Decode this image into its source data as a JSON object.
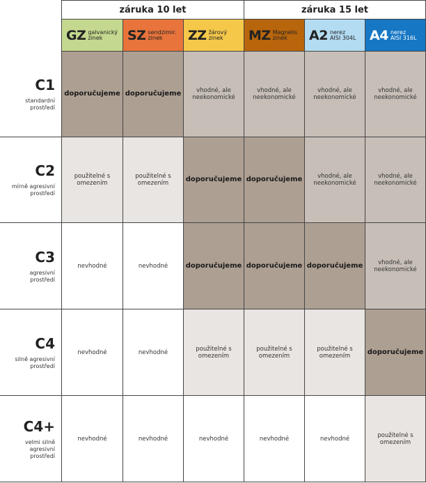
{
  "groups": [
    {
      "label": "záruka 10 let"
    },
    {
      "label": "záruka 15 let"
    }
  ],
  "materials": [
    {
      "code": "GZ",
      "desc1": "galvanický",
      "desc2": "zinek",
      "color": "#c4d98f",
      "text_color": "#222222"
    },
    {
      "code": "SZ",
      "desc1": "sendzimir.",
      "desc2": "zinek",
      "color": "#e8743c",
      "text_color": "#222222"
    },
    {
      "code": "ZZ",
      "desc1": "žárový",
      "desc2": "zinek",
      "color": "#f5c84a",
      "text_color": "#222222"
    },
    {
      "code": "MZ",
      "desc1": "Magnelis",
      "desc2": "zinek",
      "color": "#b8650c",
      "text_color": "#222222"
    },
    {
      "code": "A2",
      "desc1": "nerez",
      "desc2": "AISI 304L",
      "color": "#b3dbf2",
      "text_color": "#222222"
    },
    {
      "code": "A4",
      "desc1": "nerez",
      "desc2": "AISI 316L",
      "color": "#1677c4",
      "text_color": "#ffffff"
    }
  ],
  "rows": [
    {
      "code": "C1",
      "desc": [
        "standardní",
        "prostředí"
      ],
      "cells": [
        {
          "t": "doporučujeme",
          "k": "rec"
        },
        {
          "t": "doporučujeme",
          "k": "rec"
        },
        {
          "t": "vhodné, ale neekonomické",
          "k": "ok"
        },
        {
          "t": "vhodné, ale neekonomické",
          "k": "ok"
        },
        {
          "t": "vhodné, ale neekonomické",
          "k": "ok"
        },
        {
          "t": "vhodné, ale neekonomické",
          "k": "ok"
        }
      ]
    },
    {
      "code": "C2",
      "desc": [
        "mírně agresivní",
        "prostředí"
      ],
      "cells": [
        {
          "t": "použitelné s omezením",
          "k": "lim"
        },
        {
          "t": "použitelné s omezením",
          "k": "lim"
        },
        {
          "t": "doporučujeme",
          "k": "rec"
        },
        {
          "t": "doporučujeme",
          "k": "rec"
        },
        {
          "t": "vhodné, ale neekonomické",
          "k": "ok"
        },
        {
          "t": "vhodné, ale neekonomické",
          "k": "ok"
        }
      ]
    },
    {
      "code": "C3",
      "desc": [
        "agresivní",
        "prostředí"
      ],
      "cells": [
        {
          "t": "nevhodné",
          "k": "no"
        },
        {
          "t": "nevhodné",
          "k": "no"
        },
        {
          "t": "doporučujeme",
          "k": "rec"
        },
        {
          "t": "doporučujeme",
          "k": "rec"
        },
        {
          "t": "doporučujeme",
          "k": "rec"
        },
        {
          "t": "vhodné, ale neekonomické",
          "k": "ok"
        }
      ]
    },
    {
      "code": "C4",
      "desc": [
        "silně agresivní",
        "prostředí"
      ],
      "cells": [
        {
          "t": "nevhodné",
          "k": "no"
        },
        {
          "t": "nevhodné",
          "k": "no"
        },
        {
          "t": "použitelné s omezením",
          "k": "lim"
        },
        {
          "t": "použitelné s omezením",
          "k": "lim"
        },
        {
          "t": "použitelné s omezením",
          "k": "lim"
        },
        {
          "t": "doporučujeme",
          "k": "rec"
        }
      ]
    },
    {
      "code": "C4+",
      "desc": [
        "velmi silně",
        "agresivní",
        "prostředí"
      ],
      "cells": [
        {
          "t": "nevhodné",
          "k": "no"
        },
        {
          "t": "nevhodné",
          "k": "no"
        },
        {
          "t": "nevhodné",
          "k": "no"
        },
        {
          "t": "nevhodné",
          "k": "no"
        },
        {
          "t": "nevhodné",
          "k": "no"
        },
        {
          "t": "použitelné s omezením",
          "k": "lim"
        }
      ]
    }
  ]
}
